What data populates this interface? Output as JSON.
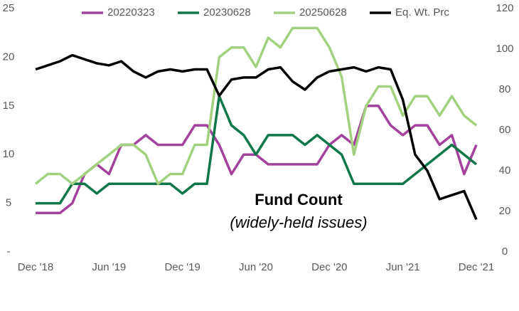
{
  "chart_data": {
    "type": "line",
    "annotation": "Fund Count",
    "annotation_sub": "(widely-held issues)",
    "categories": [
      "Dec '18",
      null,
      null,
      null,
      null,
      null,
      "Jun '19",
      null,
      null,
      null,
      null,
      null,
      "Dec '19",
      null,
      null,
      null,
      null,
      null,
      "Jun '20",
      null,
      null,
      null,
      null,
      null,
      "Dec '20",
      null,
      null,
      null,
      null,
      null,
      "Jun '21",
      null,
      null,
      null,
      null,
      null,
      "Dec '21"
    ],
    "series": [
      {
        "name": "20220323",
        "color": "#a3429c",
        "values": [
          4,
          4,
          4,
          5,
          8,
          9,
          8,
          11,
          11,
          12,
          11,
          11,
          11,
          13,
          13,
          11,
          8,
          10,
          10,
          9,
          9,
          9,
          9,
          9,
          11,
          12,
          11,
          15,
          15,
          13,
          12,
          13,
          13,
          11,
          12,
          8,
          11
        ]
      },
      {
        "name": "20230628",
        "color": "#0f7748",
        "values": [
          5,
          5,
          5,
          7,
          7,
          6,
          7,
          7,
          7,
          7,
          7,
          7,
          6,
          7,
          7,
          16,
          13,
          12,
          10,
          12,
          12,
          12,
          11,
          12,
          11,
          10,
          7,
          7,
          7,
          7,
          7,
          8,
          9,
          10,
          11,
          10,
          9
        ]
      },
      {
        "name": "20250628",
        "color": "#a3d17f",
        "values": [
          7,
          8,
          8,
          7,
          8,
          9,
          10,
          11,
          11,
          10,
          7,
          8,
          8,
          11,
          11,
          20,
          21,
          21,
          19,
          22,
          21,
          23,
          23,
          23,
          21,
          18,
          10,
          15,
          17,
          17,
          14,
          16,
          16,
          14,
          16,
          14,
          13
        ]
      },
      {
        "name": "Eq. Wt. Prc",
        "color": "#000000",
        "axis": "y2",
        "values": [
          90,
          92,
          94,
          97,
          95,
          93,
          92,
          94,
          89,
          86,
          89,
          90,
          89,
          90,
          90,
          77,
          85,
          86,
          86,
          90,
          91,
          84,
          80,
          86,
          89,
          90,
          91,
          89,
          91,
          90,
          75,
          48,
          40,
          26,
          28,
          30,
          16
        ]
      }
    ],
    "ylim": [
      0,
      25
    ],
    "yticks": [
      {
        "value": 0,
        "label": "-"
      },
      5,
      10,
      15,
      20,
      25
    ],
    "y2lim": [
      0,
      120
    ],
    "y2ticks": [
      0,
      20,
      40,
      60,
      80,
      100,
      120
    ],
    "legend": "top",
    "grid": false
  }
}
